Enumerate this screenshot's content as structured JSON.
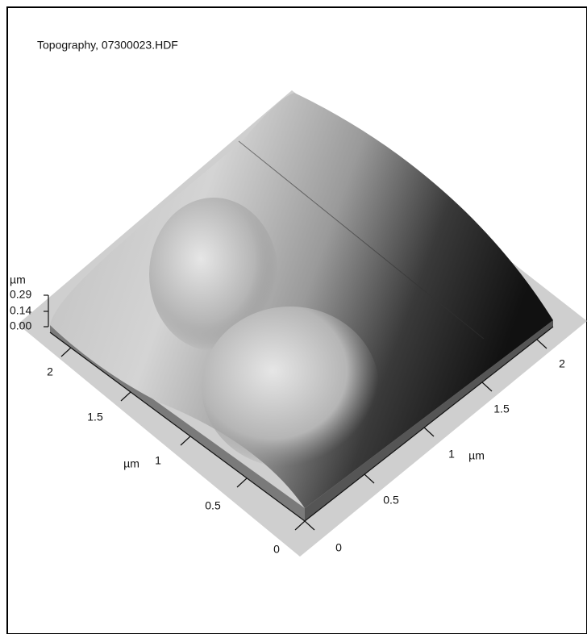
{
  "title": "Topography, 07300023.HDF",
  "z_axis": {
    "unit": "µm",
    "ticks": [
      "0.29",
      "0.14",
      "0.00"
    ]
  },
  "left_axis": {
    "unit": "µm",
    "ticks": [
      "2",
      "1.5",
      "1",
      "0.5",
      "0"
    ]
  },
  "right_axis": {
    "unit": "µm",
    "ticks": [
      "0",
      "0.5",
      "1",
      "1.5",
      "2"
    ]
  }
}
